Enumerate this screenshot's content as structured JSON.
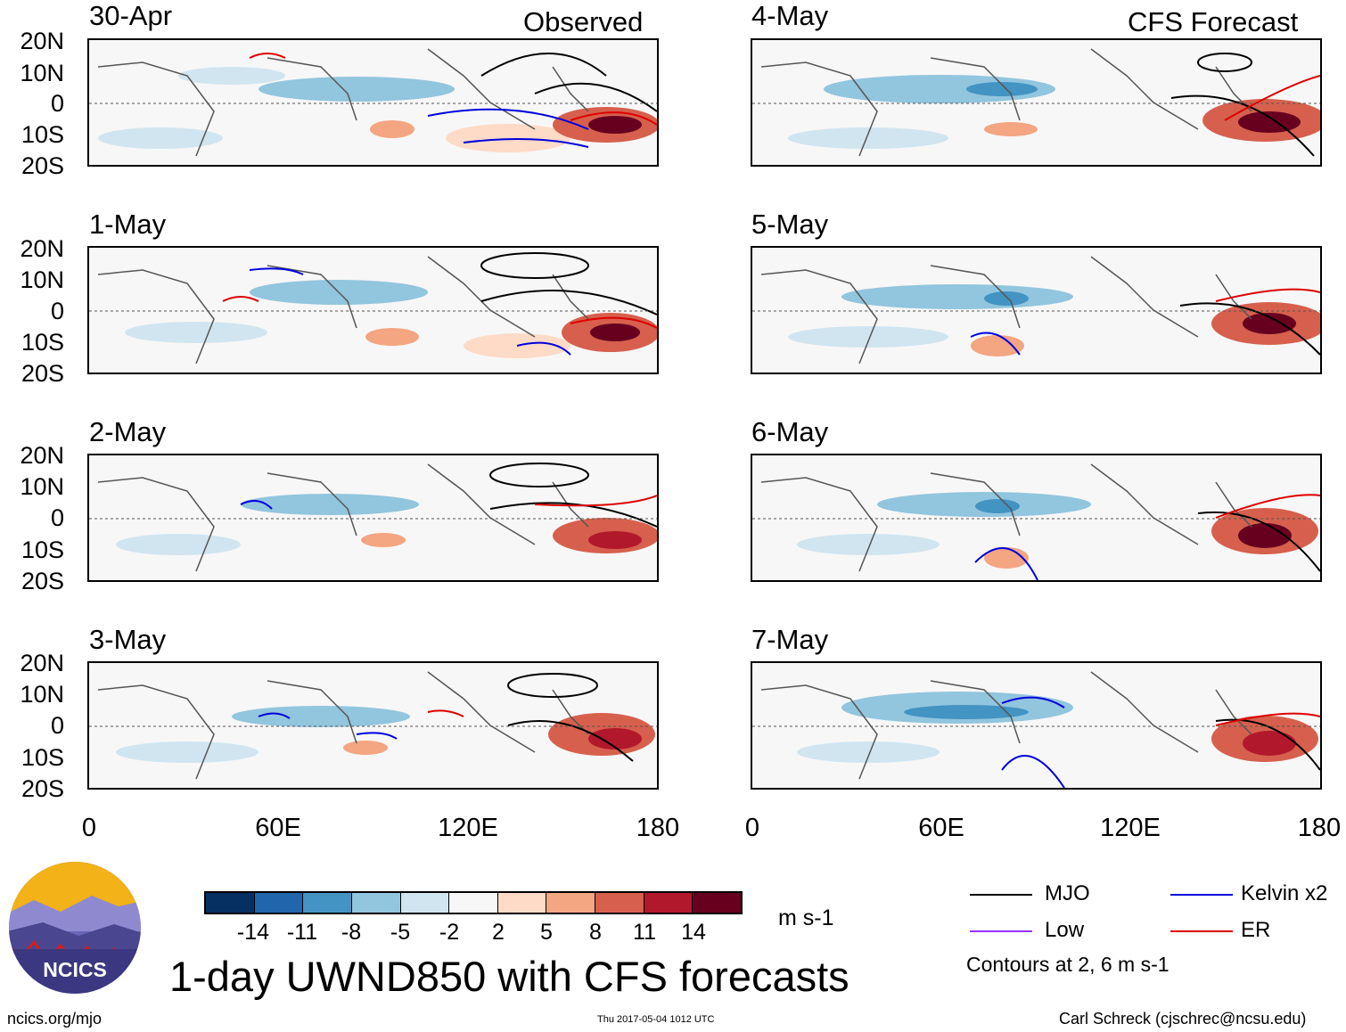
{
  "columns": {
    "left_title": "Observed",
    "right_title": "CFS Forecast"
  },
  "panels": {
    "left": [
      "30-Apr",
      "1-May",
      "2-May",
      "3-May"
    ],
    "right": [
      "4-May",
      "5-May",
      "6-May",
      "7-May"
    ]
  },
  "lat_labels": [
    "20N",
    "10N",
    "0",
    "10S",
    "20S"
  ],
  "lon_labels": [
    "0",
    "60E",
    "120E",
    "180"
  ],
  "colorbar": {
    "ticks": [
      "-14",
      "-11",
      "-8",
      "-5",
      "-2",
      "2",
      "5",
      "8",
      "11",
      "14"
    ],
    "colors": [
      "#053061",
      "#2166ac",
      "#4393c3",
      "#92c5de",
      "#d1e5f0",
      "#f7f7f7",
      "#fddbc7",
      "#f4a582",
      "#d6604d",
      "#b2182b",
      "#67001f"
    ],
    "units": "m s-1"
  },
  "title": "1-day UWND850 with CFS forecasts",
  "legend": {
    "items": [
      {
        "label": "MJO",
        "color": "#000000"
      },
      {
        "label": "Kelvin x2",
        "color": "#0000dd"
      },
      {
        "label": "Low",
        "color": "#9933ff"
      },
      {
        "label": "ER",
        "color": "#dd0000"
      }
    ],
    "note": "Contours at 2, 6 m s-1"
  },
  "logo": {
    "text": "NCICS"
  },
  "footer": {
    "url": "ncics.org/mjo",
    "timestamp": "Thu 2017-05-04 1012 UTC",
    "credit": "Carl Schreck (cjschrec@ncsu.edu)"
  }
}
